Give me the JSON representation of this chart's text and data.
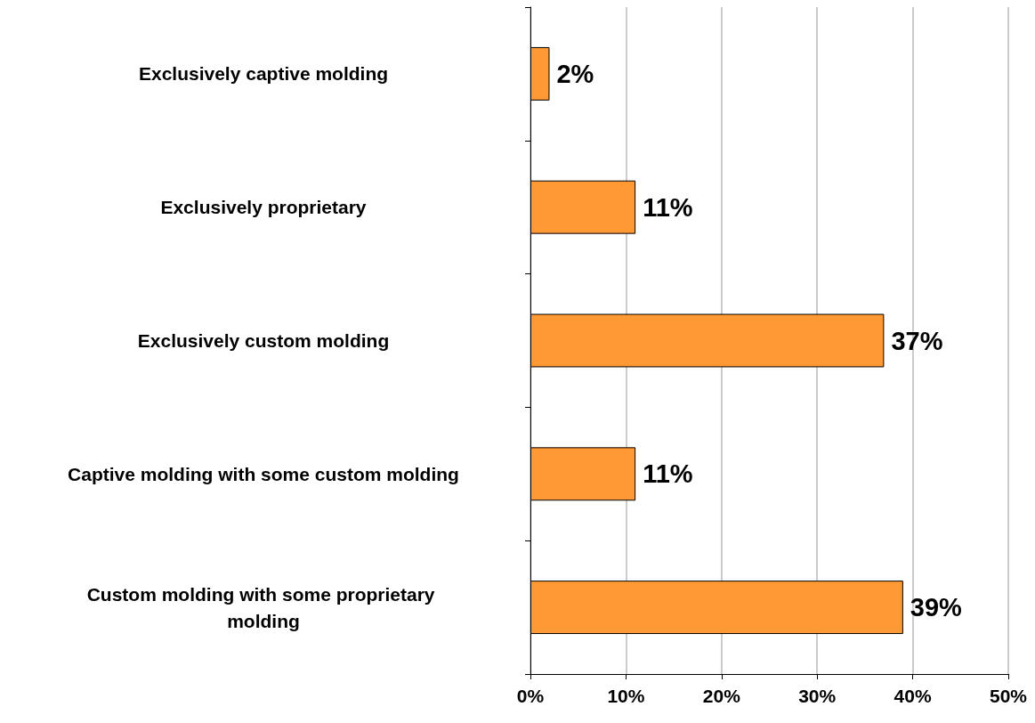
{
  "chart_data": {
    "type": "bar",
    "orientation": "horizontal",
    "categories": [
      "Exclusively captive molding",
      "Exclusively proprietary",
      "Exclusively custom molding",
      "Captive molding with some custom molding",
      "Custom molding with some proprietary molding"
    ],
    "values": [
      2,
      11,
      37,
      11,
      39
    ],
    "value_labels": [
      "2%",
      "11%",
      "37%",
      "11%",
      "39%"
    ],
    "color": "#ff9933",
    "xlim": [
      0,
      50
    ],
    "xticks": [
      {
        "value": 0,
        "label": "0%"
      },
      {
        "value": 10,
        "label": "10%"
      },
      {
        "value": 20,
        "label": "20%"
      },
      {
        "value": 30,
        "label": "30%"
      },
      {
        "value": 40,
        "label": "40%"
      },
      {
        "value": 50,
        "label": "50%"
      }
    ],
    "grid": "x"
  }
}
